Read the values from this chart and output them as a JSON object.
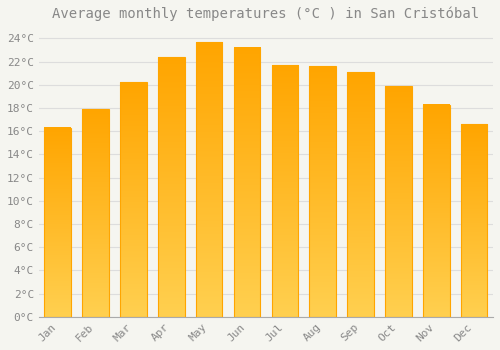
{
  "title": "Average monthly temperatures (°C ) in San Cristóbal",
  "months": [
    "Jan",
    "Feb",
    "Mar",
    "Apr",
    "May",
    "Jun",
    "Jul",
    "Aug",
    "Sep",
    "Oct",
    "Nov",
    "Dec"
  ],
  "values": [
    16.3,
    17.9,
    20.2,
    22.4,
    23.7,
    23.2,
    21.7,
    21.6,
    21.1,
    19.9,
    18.3,
    16.6
  ],
  "bar_color_bottom": "#FFA500",
  "bar_color_top": "#FFD050",
  "background_color": "#F5F5F0",
  "grid_color": "#DDDDDD",
  "text_color": "#888888",
  "ylim": [
    0,
    25
  ],
  "ytick_step": 2,
  "title_fontsize": 10,
  "tick_fontsize": 8
}
